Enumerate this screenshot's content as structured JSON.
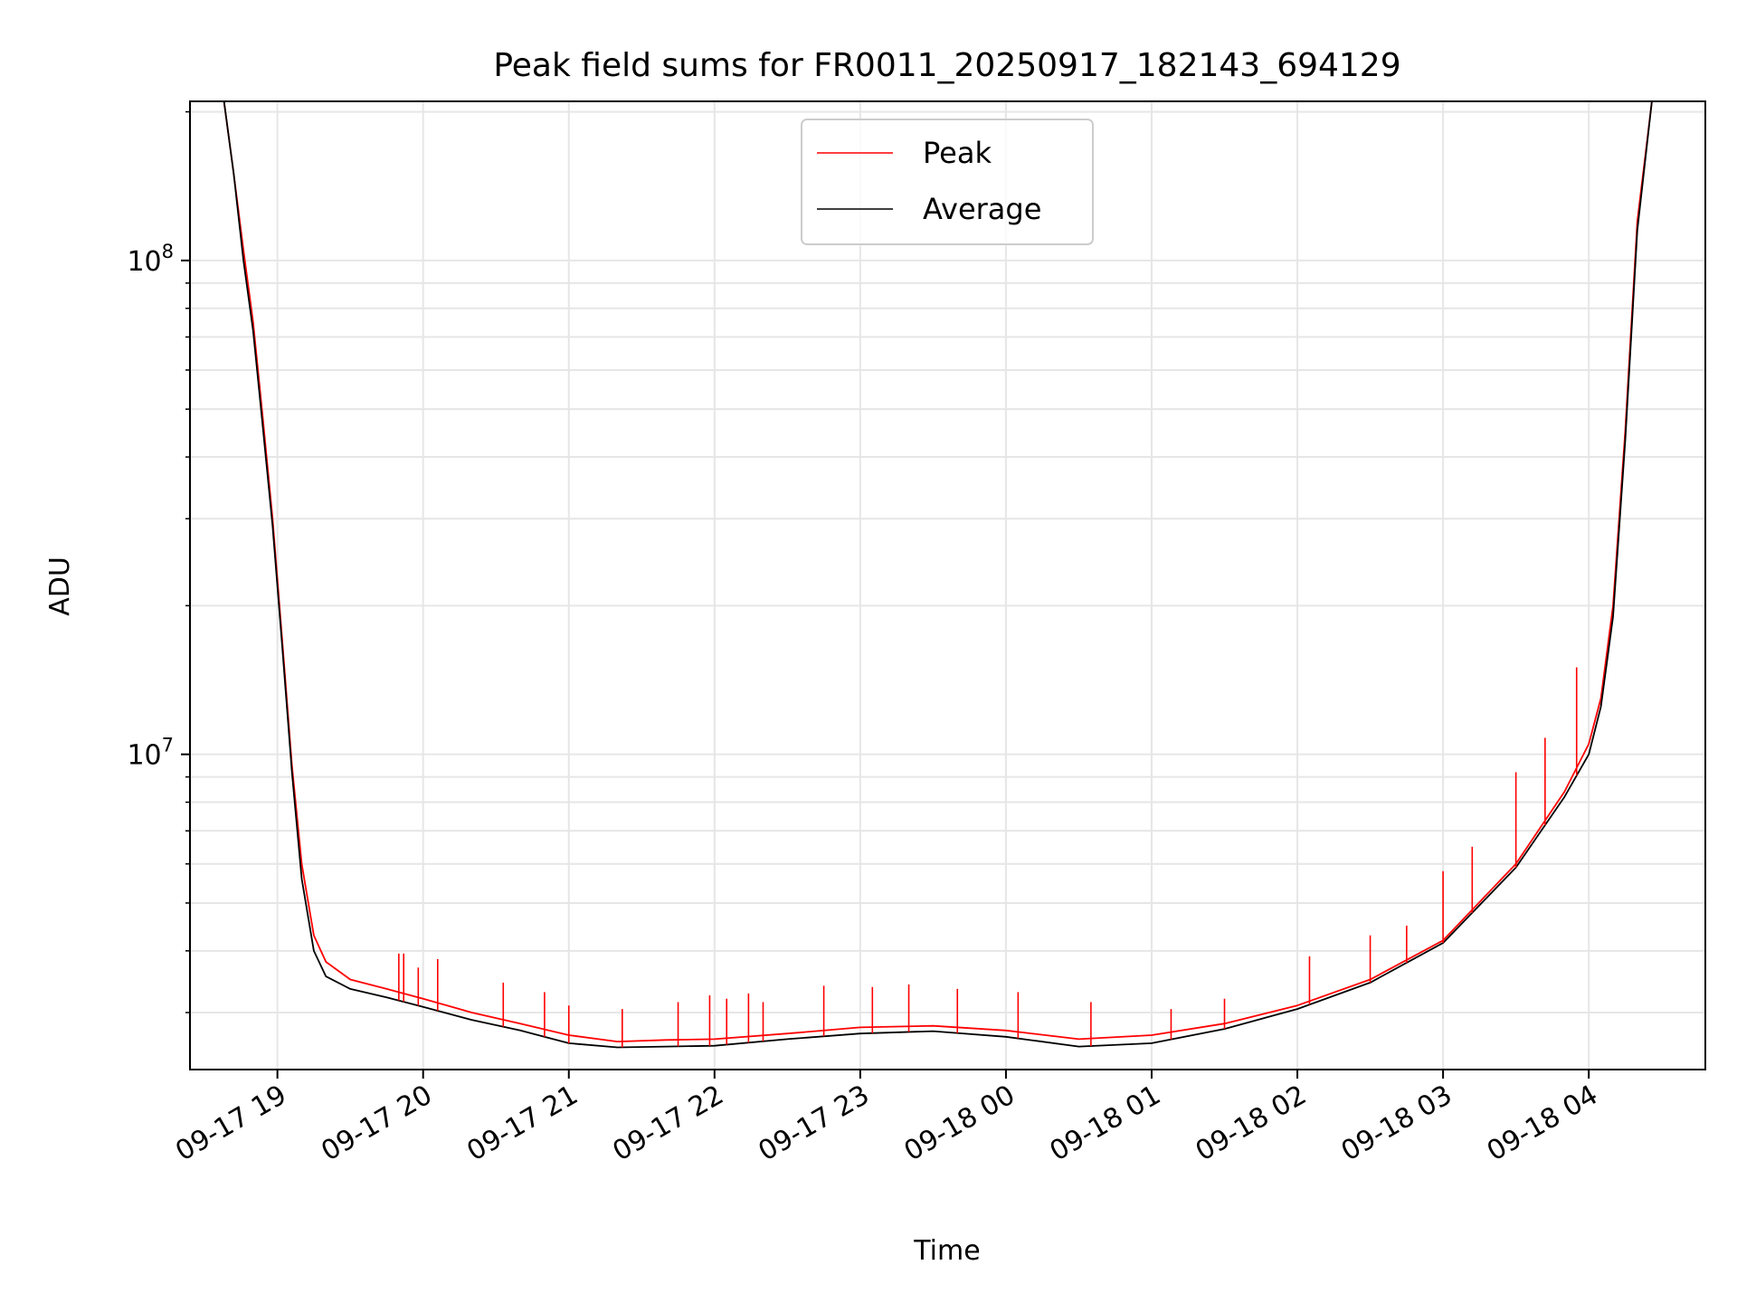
{
  "chart_data": {
    "type": "line",
    "title": "Peak field sums for FR0011_20250917_182143_694129",
    "xlabel": "Time",
    "ylabel": "ADU",
    "y_scale": "log",
    "xlim": [
      "2025-09-17 18:24",
      "2025-09-18 04:48"
    ],
    "ylim": [
      2300000,
      210000000
    ],
    "x_ticks": [
      "09-17 19",
      "09-17 20",
      "09-17 21",
      "09-17 22",
      "09-17 23",
      "09-18 00",
      "09-18 01",
      "09-18 02",
      "09-18 03",
      "09-18 04"
    ],
    "y_tick_labels": [
      {
        "value": 10000000,
        "base": "10",
        "exp": "7"
      },
      {
        "value": 100000000,
        "base": "10",
        "exp": "8"
      }
    ],
    "grid": true,
    "legend_position": "top-center",
    "x": [
      "2025-09-17 18:38",
      "2025-09-17 18:42",
      "2025-09-17 18:46",
      "2025-09-17 18:50",
      "2025-09-17 18:54",
      "2025-09-17 18:58",
      "2025-09-17 19:02",
      "2025-09-17 19:06",
      "2025-09-17 19:10",
      "2025-09-17 19:15",
      "2025-09-17 19:20",
      "2025-09-17 19:30",
      "2025-09-17 19:45",
      "2025-09-17 20:00",
      "2025-09-17 20:20",
      "2025-09-17 20:40",
      "2025-09-17 21:00",
      "2025-09-17 21:20",
      "2025-09-17 21:40",
      "2025-09-17 22:00",
      "2025-09-17 22:30",
      "2025-09-17 23:00",
      "2025-09-17 23:30",
      "2025-09-18 00:00",
      "2025-09-18 00:30",
      "2025-09-18 01:00",
      "2025-09-18 01:30",
      "2025-09-18 02:00",
      "2025-09-18 02:30",
      "2025-09-18 03:00",
      "2025-09-18 03:30",
      "2025-09-18 03:50",
      "2025-09-18 04:00",
      "2025-09-18 04:05",
      "2025-09-18 04:10",
      "2025-09-18 04:15",
      "2025-09-18 04:20",
      "2025-09-18 04:26"
    ],
    "series": [
      {
        "name": "Peak",
        "color": "#ff0000",
        "values": [
          210000000,
          150000000,
          105000000,
          75000000,
          48000000,
          30000000,
          17000000,
          9500000,
          6000000,
          4300000,
          3800000,
          3500000,
          3350000,
          3200000,
          3000000,
          2850000,
          2700000,
          2620000,
          2640000,
          2650000,
          2720000,
          2800000,
          2820000,
          2760000,
          2650000,
          2700000,
          2850000,
          3100000,
          3500000,
          4200000,
          6000000,
          8400000,
          10500000,
          13000000,
          20000000,
          45000000,
          120000000,
          210000000
        ],
        "spikes": [
          [
            "2025-09-17 19:50",
            3950000
          ],
          [
            "2025-09-17 19:52",
            3950000
          ],
          [
            "2025-09-17 19:58",
            3700000
          ],
          [
            "2025-09-17 20:06",
            3850000
          ],
          [
            "2025-09-17 20:33",
            3450000
          ],
          [
            "2025-09-17 20:50",
            3300000
          ],
          [
            "2025-09-17 21:00",
            3100000
          ],
          [
            "2025-09-17 21:22",
            3050000
          ],
          [
            "2025-09-17 21:45",
            3150000
          ],
          [
            "2025-09-17 21:58",
            3250000
          ],
          [
            "2025-09-17 22:05",
            3200000
          ],
          [
            "2025-09-17 22:14",
            3280000
          ],
          [
            "2025-09-17 22:20",
            3150000
          ],
          [
            "2025-09-17 22:45",
            3400000
          ],
          [
            "2025-09-17 23:05",
            3380000
          ],
          [
            "2025-09-17 23:20",
            3420000
          ],
          [
            "2025-09-17 23:40",
            3350000
          ],
          [
            "2025-09-18 00:05",
            3300000
          ],
          [
            "2025-09-18 00:35",
            3150000
          ],
          [
            "2025-09-18 01:08",
            3050000
          ],
          [
            "2025-09-18 01:30",
            3200000
          ],
          [
            "2025-09-18 02:05",
            3900000
          ],
          [
            "2025-09-18 02:30",
            4300000
          ],
          [
            "2025-09-18 02:45",
            4500000
          ],
          [
            "2025-09-18 03:00",
            5800000
          ],
          [
            "2025-09-18 03:12",
            6500000
          ],
          [
            "2025-09-18 03:30",
            9200000
          ],
          [
            "2025-09-18 03:42",
            10800000
          ],
          [
            "2025-09-18 03:55",
            15000000
          ]
        ]
      },
      {
        "name": "Average",
        "color": "#000000",
        "values": [
          210000000,
          150000000,
          100000000,
          72000000,
          46000000,
          29000000,
          16500000,
          9200000,
          5600000,
          4000000,
          3550000,
          3350000,
          3220000,
          3080000,
          2900000,
          2760000,
          2600000,
          2550000,
          2560000,
          2570000,
          2650000,
          2720000,
          2750000,
          2680000,
          2560000,
          2600000,
          2780000,
          3050000,
          3450000,
          4150000,
          5900000,
          8200000,
          10000000,
          12500000,
          19000000,
          43000000,
          115000000,
          210000000
        ]
      }
    ]
  }
}
